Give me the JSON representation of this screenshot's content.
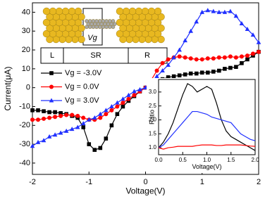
{
  "chart_data": [
    {
      "type": "line",
      "xlabel": "Voltage(V)",
      "ylabel": "Current(μA)",
      "x": [
        -2,
        -1.9,
        -1.8,
        -1.7,
        -1.6,
        -1.5,
        -1.4,
        -1.3,
        -1.2,
        -1.1,
        -1,
        -0.9,
        -0.8,
        -0.7,
        -0.6,
        -0.5,
        -0.4,
        -0.3,
        -0.2,
        -0.1,
        0,
        0.1,
        0.2,
        0.3,
        0.4,
        0.5,
        0.6,
        0.7,
        0.8,
        0.9,
        1,
        1.1,
        1.2,
        1.3,
        1.4,
        1.5,
        1.6,
        1.7,
        1.8,
        1.9,
        2
      ],
      "series": [
        {
          "name": "Vg = -3.0V",
          "color": "#000000",
          "marker": "square",
          "values": [
            -12,
            -12,
            -12.5,
            -13,
            -13,
            -13.5,
            -14,
            -15,
            -16,
            -21,
            -30,
            -33,
            -32,
            -27,
            -20,
            -14,
            -10,
            -7,
            -4.5,
            -2,
            0,
            2,
            3.5,
            4.5,
            5.5,
            6,
            6.5,
            7,
            7.5,
            7.5,
            8,
            8,
            8.5,
            9,
            10,
            10.5,
            11,
            13,
            15,
            17,
            19
          ]
        },
        {
          "name": "Vg = 0.0V",
          "color": "#ff0000",
          "marker": "circle",
          "values": [
            -17,
            -17,
            -16.5,
            -16,
            -15.5,
            -15,
            -14.5,
            -14.5,
            -15,
            -16,
            -17,
            -17,
            -16,
            -14,
            -12,
            -10,
            -8,
            -6,
            -4,
            -2,
            0,
            4,
            9,
            13,
            15,
            16,
            16.5,
            16,
            15.5,
            15,
            15,
            15.5,
            15.5,
            16,
            16,
            16.5,
            16,
            16.5,
            17,
            18,
            19
          ]
        },
        {
          "name": "Vg = 3.0V",
          "color": "#2030ff",
          "marker": "triangle",
          "values": [
            -31,
            -29,
            -28,
            -26,
            -25,
            -24,
            -23,
            -22,
            -21,
            -19,
            -17,
            -16,
            -14,
            -12,
            -10,
            -8,
            -6,
            -4,
            -2,
            -1,
            0,
            3,
            6,
            9,
            12,
            16,
            20,
            25,
            30,
            35,
            40,
            41,
            40.5,
            40,
            40,
            40.5,
            38,
            34,
            31,
            28,
            24
          ]
        }
      ],
      "xlim": [
        -2,
        2
      ],
      "ylim": [
        -46,
        45
      ],
      "xticks": [
        -2,
        -1,
        0,
        1,
        2
      ],
      "yticks": [
        -40,
        -30,
        -20,
        -10,
        0,
        10,
        20,
        30,
        40
      ],
      "legend": "upper left",
      "diagram_labels": [
        "L",
        "SR",
        "R",
        "Vg"
      ]
    },
    {
      "type": "line",
      "xlabel": "Voltage(V)",
      "ylabel": "Ratio",
      "x": [
        0,
        0.1,
        0.2,
        0.3,
        0.4,
        0.5,
        0.6,
        0.7,
        0.8,
        0.9,
        1,
        1.1,
        1.2,
        1.3,
        1.4,
        1.5,
        1.6,
        1.7,
        1.8,
        1.9,
        2
      ],
      "series": [
        {
          "color": "#000000",
          "values": [
            1.0,
            1.2,
            1.5,
            1.9,
            2.4,
            2.9,
            3.3,
            3.2,
            3.0,
            3.1,
            3.2,
            3.1,
            2.6,
            2.0,
            1.6,
            1.4,
            1.3,
            1.2,
            1.1,
            1.0,
            0.9
          ]
        },
        {
          "color": "#2030ff",
          "values": [
            1.0,
            1.1,
            1.3,
            1.5,
            1.7,
            1.9,
            2.1,
            2.3,
            2.3,
            2.25,
            2.2,
            2.1,
            2.05,
            2.0,
            1.95,
            1.9,
            1.7,
            1.5,
            1.4,
            1.3,
            1.25
          ]
        },
        {
          "color": "#ff0000",
          "values": [
            1.0,
            0.95,
            1.0,
            1.02,
            1.05,
            1.05,
            1.05,
            1.05,
            1.08,
            1.1,
            1.1,
            1.1,
            1.08,
            1.08,
            1.1,
            1.1,
            1.1,
            1.1,
            1.08,
            1.06,
            1.05
          ]
        }
      ],
      "xlim": [
        0,
        2
      ],
      "ylim": [
        0.75,
        3.45
      ],
      "xticks": [
        {
          "value": 0,
          "label": "0.0"
        },
        0.5,
        {
          "value": 1,
          "label": "1.0"
        },
        1.5,
        {
          "value": 2,
          "label": "2.0"
        }
      ],
      "yticks": [
        {
          "value": 1,
          "label": "1.0"
        },
        1.5,
        {
          "value": 2,
          "label": "2.0"
        },
        2.5,
        {
          "value": 3,
          "label": "3.0"
        }
      ]
    }
  ]
}
